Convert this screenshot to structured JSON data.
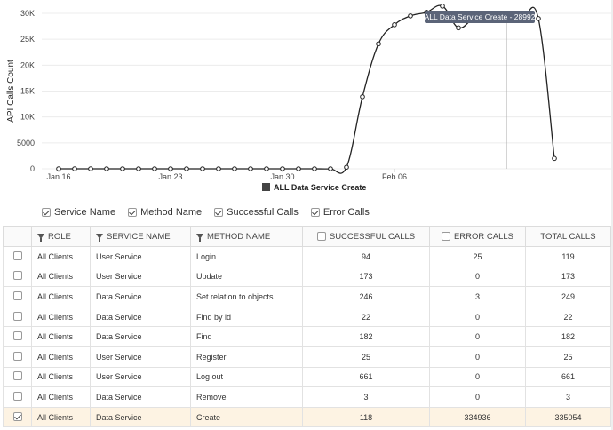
{
  "chart_data": {
    "type": "line",
    "ylabel": "API Calls Count",
    "yticks": [
      "30K",
      "25K",
      "20K",
      "15K",
      "10K",
      "5000",
      "0"
    ],
    "ytick_values": [
      30000,
      25000,
      20000,
      15000,
      10000,
      5000,
      0
    ],
    "xticks": [
      "Jan 16",
      "Jan 23",
      "Jan 30",
      "Feb 06"
    ],
    "xtick_values": [
      "2018-01-16",
      "2018-01-23",
      "2018-01-30",
      "2018-02-06"
    ],
    "ylim": [
      0,
      30000
    ],
    "grid": true,
    "x": [
      "2018-01-16",
      "2018-01-17",
      "2018-01-18",
      "2018-01-19",
      "2018-01-20",
      "2018-01-21",
      "2018-01-22",
      "2018-01-23",
      "2018-01-24",
      "2018-01-25",
      "2018-01-26",
      "2018-01-27",
      "2018-01-28",
      "2018-01-29",
      "2018-01-30",
      "2018-01-31",
      "2018-02-01",
      "2018-02-02",
      "2018-02-03",
      "2018-02-04",
      "2018-02-05",
      "2018-02-06",
      "2018-02-07",
      "2018-02-08",
      "2018-02-09",
      "2018-02-10",
      "2018-02-11",
      "2018-02-12",
      "2018-02-13",
      "2018-02-14",
      "2018-02-15",
      "2018-02-16"
    ],
    "series": [
      {
        "name": "ALL Data Service Create",
        "color": "#222222",
        "values": [
          0,
          0,
          0,
          0,
          0,
          0,
          0,
          0,
          0,
          0,
          0,
          0,
          0,
          0,
          0,
          0,
          0,
          0,
          300,
          13900,
          24100,
          27800,
          29500,
          30200,
          31400,
          27200,
          29100,
          28992,
          28992,
          28992,
          28992,
          2000
        ]
      }
    ],
    "tooltip": "ALL Data Service Create - 28992",
    "legend": "ALL Data Service Create",
    "legend_placement": "bottom"
  },
  "legend_options": [
    {
      "label": "Service Name",
      "checked": true
    },
    {
      "label": "Method Name",
      "checked": true
    },
    {
      "label": "Successful Calls",
      "checked": true
    },
    {
      "label": "Error Calls",
      "checked": true
    }
  ],
  "table": {
    "headers": {
      "role": "ROLE",
      "service": "SERVICE NAME",
      "method": "METHOD NAME",
      "successful": "SUCCESSFUL CALLS",
      "error": "ERROR CALLS",
      "total": "TOTAL CALLS"
    },
    "rows": [
      {
        "role": "All Clients",
        "service": "User Service",
        "method": "Login",
        "successful": "94",
        "error": "25",
        "total": "119",
        "selected": false
      },
      {
        "role": "All Clients",
        "service": "User Service",
        "method": "Update",
        "successful": "173",
        "error": "0",
        "total": "173",
        "selected": false
      },
      {
        "role": "All Clients",
        "service": "Data Service",
        "method": "Set relation to objects",
        "successful": "246",
        "error": "3",
        "total": "249",
        "selected": false
      },
      {
        "role": "All Clients",
        "service": "Data Service",
        "method": "Find by id",
        "successful": "22",
        "error": "0",
        "total": "22",
        "selected": false
      },
      {
        "role": "All Clients",
        "service": "Data Service",
        "method": "Find",
        "successful": "182",
        "error": "0",
        "total": "182",
        "selected": false
      },
      {
        "role": "All Clients",
        "service": "User Service",
        "method": "Register",
        "successful": "25",
        "error": "0",
        "total": "25",
        "selected": false
      },
      {
        "role": "All Clients",
        "service": "User Service",
        "method": "Log out",
        "successful": "661",
        "error": "0",
        "total": "661",
        "selected": false
      },
      {
        "role": "All Clients",
        "service": "Data Service",
        "method": "Remove",
        "successful": "3",
        "error": "0",
        "total": "3",
        "selected": false
      },
      {
        "role": "All Clients",
        "service": "Data Service",
        "method": "Create",
        "successful": "118",
        "error": "334936",
        "total": "335054",
        "selected": true
      }
    ]
  }
}
